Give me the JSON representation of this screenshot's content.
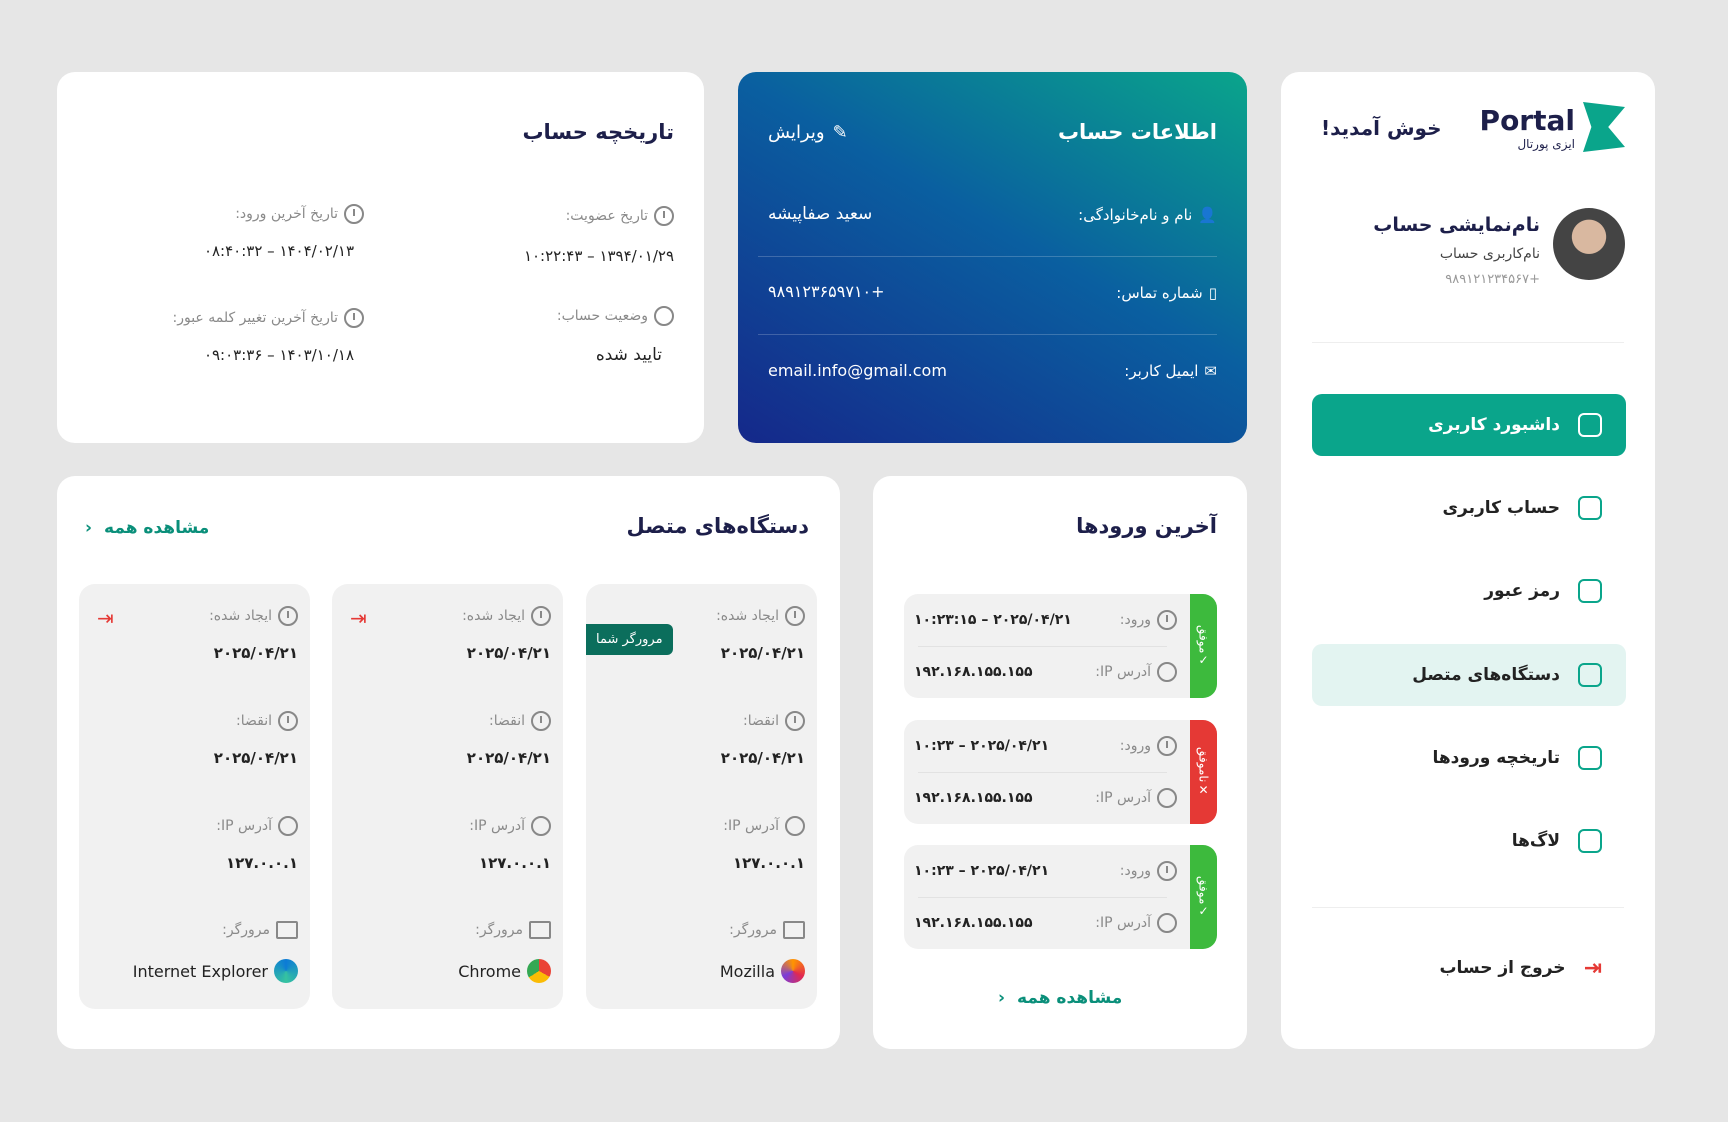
{
  "sidebar": {
    "welcome": "خوش آمدید!",
    "logo_text": "Portal",
    "logo_sub": "ایزی پورتال",
    "display_name": "نام‌نمایشی حساب",
    "username": "نام‌کاربری حساب",
    "phone": "+۹۸۹۱۲۱۲۳۴۵۶۷",
    "items": [
      {
        "label": "داشبورد کاربری",
        "icon": "dashboard-icon",
        "state": "active"
      },
      {
        "label": "حساب کاربری",
        "icon": "user-icon"
      },
      {
        "label": "رمز عبور",
        "icon": "lock-icon"
      },
      {
        "label": "دستگاه‌های متصل",
        "icon": "monitor-icon",
        "state": "selected"
      },
      {
        "label": "تاریخچه ورودها",
        "icon": "upload-icon"
      },
      {
        "label": "لاگ‌ها",
        "icon": "cloud-icon"
      }
    ],
    "logout": "خروج از حساب"
  },
  "account_info": {
    "title": "اطلاعات حساب",
    "edit": "ویرایش",
    "name_label": "نام و نام‌خانوادگی:",
    "name": "سعید صفاپیشه",
    "phone_label": "شماره تماس:",
    "phone": "+۹۸۹۱۲۳۶۵۹۷۱۰",
    "email_label": "ایمیل کاربر:",
    "email": "email.info@gmail.com"
  },
  "history": {
    "title": "تاریخچه حساب",
    "join_label": "تاریخ عضویت:",
    "join": "۱۳۹۴/۰۱/۲۹ – ۱۰:۲۲:۴۳",
    "last_login_label": "تاریخ آخرین ورود:",
    "last_login": "۱۴۰۴/۰۲/۱۳ – ۰۸:۴۰:۳۲",
    "status_label": "وضعیت حساب:",
    "status": "تایید شده",
    "pwd_label": "تاریخ آخرین تغییر کلمه عبور:",
    "pwd": "۱۴۰۳/۱۰/۱۸ – ۰۹:۰۳:۳۶"
  },
  "devices": {
    "title": "دستگاه‌های متصل",
    "view_all": "مشاهده همه",
    "created_label": "ایجاد شده:",
    "expire_label": "انقضا:",
    "ip_label": "آدرس IP:",
    "browser_label": "مرورگر:",
    "current_badge": "مرورگر شما",
    "items": [
      {
        "created": "۲۰۲۵/۰۴/۲۱",
        "expire": "۲۰۲۵/۰۴/۲۱",
        "ip": "۱۲۷.۰.۰.۱",
        "browser": "Mozilla",
        "icon": "firefox-icon",
        "current": true
      },
      {
        "created": "۲۰۲۵/۰۴/۲۱",
        "expire": "۲۰۲۵/۰۴/۲۱",
        "ip": "۱۲۷.۰.۰.۱",
        "browser": "Chrome",
        "icon": "chrome-icon"
      },
      {
        "created": "۲۰۲۵/۰۴/۲۱",
        "expire": "۲۰۲۵/۰۴/۲۱",
        "ip": "۱۲۷.۰.۰.۱",
        "browser": "Internet Explorer",
        "icon": "edge-icon"
      }
    ]
  },
  "logins": {
    "title": "آخرین ورودها",
    "view_all": "مشاهده همه",
    "login_label": "ورود:",
    "ip_label": "آدرس IP:",
    "items": [
      {
        "time": "۲۰۲۵/۰۴/۲۱ – ۱۰:۲۳:۱۵",
        "ip": "۱۹۲.۱۶۸.۱۵۵.۱۵۵",
        "status": "موفق",
        "ok": true
      },
      {
        "time": "۲۰۲۵/۰۴/۲۱ – ۱۰:۲۳",
        "ip": "۱۹۲.۱۶۸.۱۵۵.۱۵۵",
        "status": "ناموفق",
        "ok": false
      },
      {
        "time": "۲۰۲۵/۰۴/۲۱ – ۱۰:۲۳",
        "ip": "۱۹۲.۱۶۸.۱۵۵.۱۵۵",
        "status": "موفق",
        "ok": true
      }
    ]
  },
  "colors": {
    "accent": "#0aa58b",
    "success": "#3dba3d",
    "danger": "#e53935",
    "navy": "#1d1f4a"
  }
}
